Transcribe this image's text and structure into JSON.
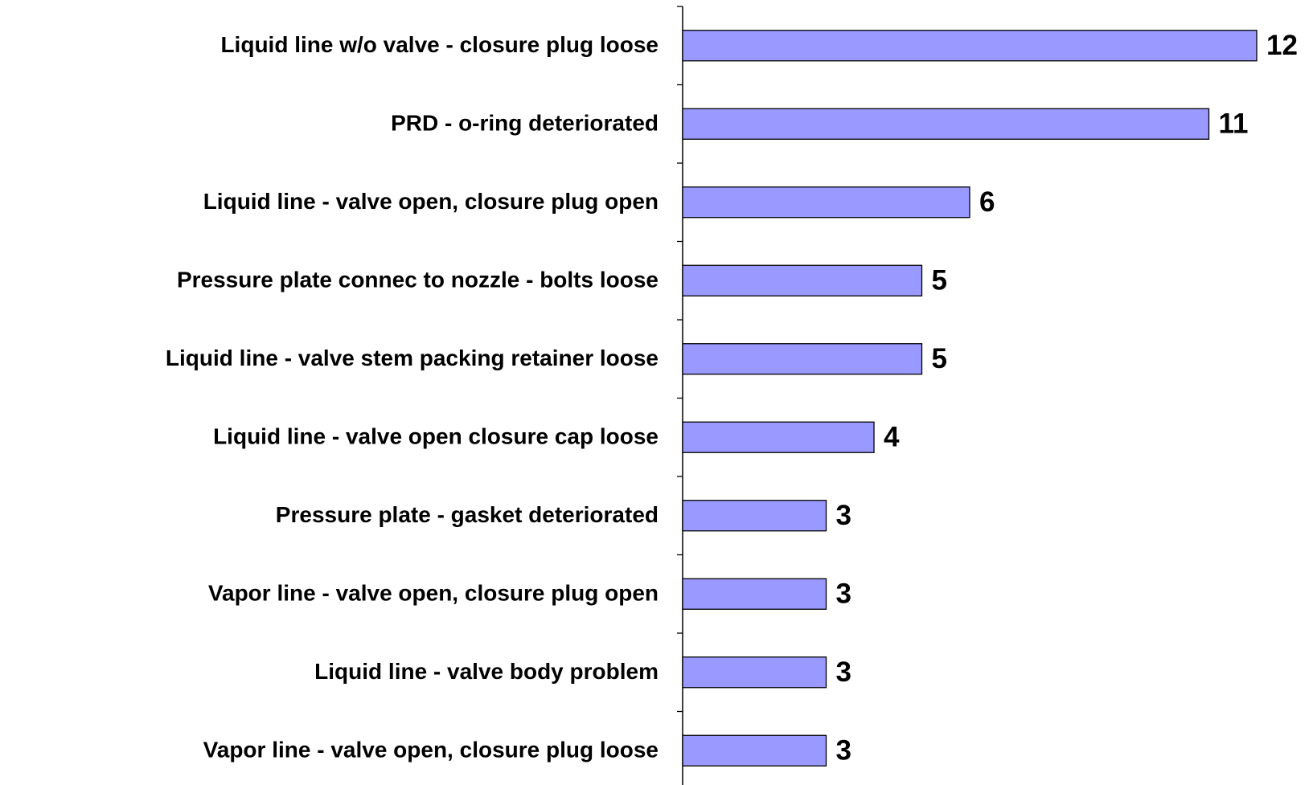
{
  "chart_data": {
    "type": "bar",
    "orientation": "horizontal",
    "categories": [
      "Liquid line w/o valve - closure plug loose",
      "PRD - o-ring deteriorated",
      "Liquid line - valve open, closure plug open",
      "Pressure plate connec to nozzle - bolts loose",
      "Liquid line - valve stem packing retainer loose",
      "Liquid line  - valve open closure cap loose",
      "Pressure plate - gasket deteriorated",
      "Vapor line - valve open, closure plug open",
      "Liquid line - valve body problem",
      "Vapor line - valve open, closure plug loose"
    ],
    "values": [
      12,
      11,
      6,
      5,
      5,
      4,
      3,
      3,
      3,
      3
    ],
    "color": "#9999ff"
  }
}
